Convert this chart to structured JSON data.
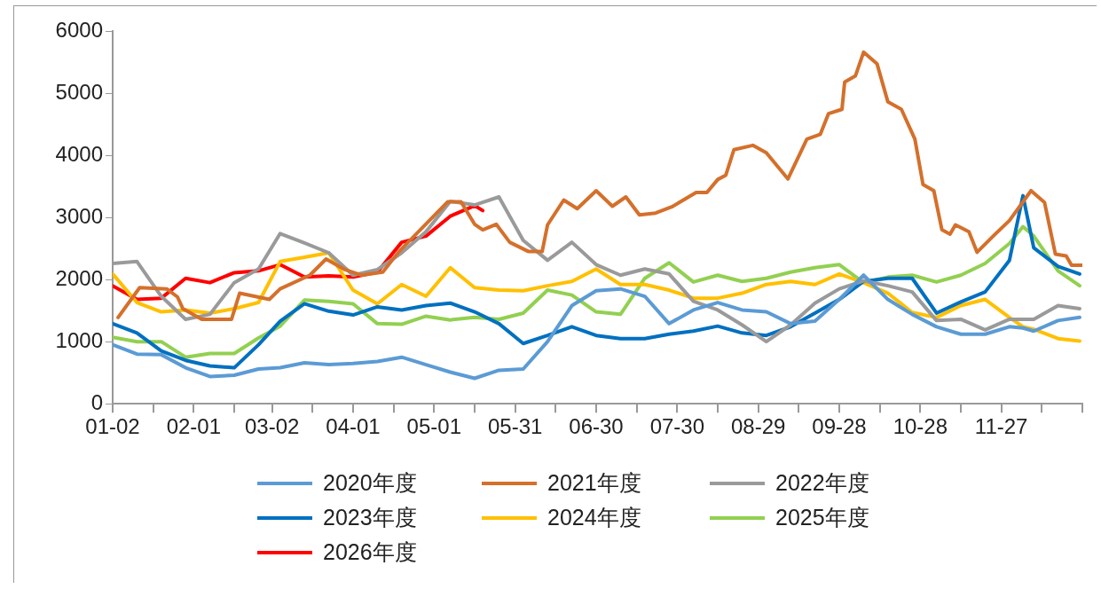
{
  "chart_data": {
    "type": "line",
    "legend": "bottom",
    "marker": "none",
    "line_style": "solid",
    "x": [
      "--01-02",
      "--01-11",
      "--01-20",
      "--01-29",
      "--02-07",
      "--02-16",
      "--02-25",
      "--03-05",
      "--03-14",
      "--03-23",
      "--04-01",
      "--04-10",
      "--04-19",
      "--04-28",
      "--05-07",
      "--05-16",
      "--05-25",
      "--06-03",
      "--06-12",
      "--06-21",
      "--06-30",
      "--07-09",
      "--07-18",
      "--07-27",
      "--08-05",
      "--08-14",
      "--08-23",
      "--09-01",
      "--09-10",
      "--09-19",
      "--09-28",
      "--10-07",
      "--10-16",
      "--10-25",
      "--11-03",
      "--11-12",
      "--11-21",
      "--11-30",
      "--12-05",
      "--12-09",
      "--12-18",
      "--12-26"
    ],
    "xlim": [
      "--01-02",
      "--12-27"
    ],
    "xticks": [
      {
        "value": "--01-02",
        "label": "01-02"
      },
      {
        "value": "--01-17",
        "label": null
      },
      {
        "value": "--02-01",
        "label": "02-01"
      },
      {
        "value": "--02-16",
        "label": null
      },
      {
        "value": "--03-02",
        "label": "03-02"
      },
      {
        "value": "--03-17",
        "label": null
      },
      {
        "value": "--04-01",
        "label": "04-01"
      },
      {
        "value": "--04-16",
        "label": null
      },
      {
        "value": "--05-01",
        "label": "05-01"
      },
      {
        "value": "--05-16",
        "label": null
      },
      {
        "value": "--05-31",
        "label": "05-31"
      },
      {
        "value": "--06-15",
        "label": null
      },
      {
        "value": "--06-30",
        "label": "06-30"
      },
      {
        "value": "--07-15",
        "label": null
      },
      {
        "value": "--07-30",
        "label": "07-30"
      },
      {
        "value": "--08-14",
        "label": null
      },
      {
        "value": "--08-29",
        "label": "08-29"
      },
      {
        "value": "--09-13",
        "label": null
      },
      {
        "value": "--09-28",
        "label": "09-28"
      },
      {
        "value": "--10-13",
        "label": null
      },
      {
        "value": "--10-28",
        "label": "10-28"
      },
      {
        "value": "--11-12",
        "label": null
      },
      {
        "value": "--11-27",
        "label": "11-27"
      },
      {
        "value": "--12-12",
        "label": null
      },
      {
        "value": "--12-27",
        "label": null
      }
    ],
    "ylim": [
      0,
      6000
    ],
    "yticks": [
      0,
      1000,
      2000,
      3000,
      4000,
      5000,
      6000
    ],
    "series": [
      {
        "name": "2020年度",
        "color": "#5b9bd5",
        "values": [
          950,
          800,
          790,
          580,
          440,
          460,
          560,
          580,
          660,
          630,
          650,
          680,
          750,
          630,
          510,
          410,
          540,
          560,
          1000,
          1580,
          1820,
          1850,
          1730,
          1290,
          1510,
          1630,
          1510,
          1480,
          1290,
          1330,
          1680,
          2070,
          1680,
          1440,
          1240,
          1120,
          1120,
          1240,
          1220,
          1170,
          1340,
          1390
        ]
      },
      {
        "name": "2021年度",
        "color": "#d4702b",
        "x": [
          "--01-04",
          "--01-12",
          "--01-22",
          "--01-26",
          "--01-28",
          "--02-04",
          "--02-15",
          "--02-18",
          "--03-01",
          "--03-05",
          "--03-16",
          "--03-22",
          "--03-29",
          "--04-04",
          "--04-12",
          "--04-18",
          "--04-27",
          "--05-06",
          "--05-11",
          "--05-16",
          "--05-19",
          "--05-24",
          "--05-29",
          "--06-05",
          "--06-10",
          "--06-12",
          "--06-18",
          "--06-23",
          "--06-30",
          "--07-06",
          "--07-11",
          "--07-16",
          "--07-22",
          "--07-28",
          "--08-06",
          "--08-10",
          "--08-14",
          "--08-17",
          "--08-20",
          "--08-27",
          "--09-01",
          "--09-09",
          "--09-16",
          "--09-21",
          "--09-24",
          "--09-29",
          "--09-30",
          "--10-04",
          "--10-07",
          "--10-12",
          "--10-16",
          "--10-21",
          "--10-26",
          "--10-29",
          "--11-02",
          "--11-05",
          "--11-08",
          "--11-10",
          "--11-15",
          "--11-18",
          "--11-24",
          "--11-30",
          "--12-08",
          "--12-13",
          "--12-17",
          "--12-21",
          "--12-23",
          "--12-27"
        ],
        "values": [
          1390,
          1870,
          1850,
          1720,
          1530,
          1360,
          1360,
          1780,
          1680,
          1850,
          2070,
          2330,
          2160,
          2070,
          2120,
          2450,
          2850,
          3250,
          3250,
          2890,
          2800,
          2890,
          2600,
          2450,
          2450,
          2880,
          3280,
          3140,
          3430,
          3180,
          3330,
          3040,
          3070,
          3170,
          3400,
          3400,
          3610,
          3680,
          4090,
          4160,
          4040,
          3620,
          4260,
          4340,
          4670,
          4740,
          5180,
          5280,
          5660,
          5470,
          4860,
          4740,
          4260,
          3530,
          3430,
          2800,
          2730,
          2880,
          2770,
          2440,
          2700,
          2950,
          3430,
          3240,
          2410,
          2380,
          2230,
          2230
        ]
      },
      {
        "name": "2022年度",
        "color": "#9a9a9a",
        "values": [
          2260,
          2290,
          1730,
          1360,
          1440,
          1950,
          2170,
          2740,
          2590,
          2430,
          2070,
          2160,
          2430,
          2770,
          3260,
          3200,
          3330,
          2630,
          2310,
          2600,
          2240,
          2070,
          2170,
          2090,
          1650,
          1510,
          1270,
          1000,
          1270,
          1620,
          1850,
          1980,
          1900,
          1800,
          1340,
          1360,
          1190,
          1360,
          1360,
          1360,
          1580,
          1530
        ]
      },
      {
        "name": "2023年度",
        "color": "#0070c0",
        "values": [
          1290,
          1140,
          850,
          700,
          610,
          580,
          950,
          1330,
          1610,
          1490,
          1430,
          1560,
          1510,
          1580,
          1620,
          1480,
          1290,
          970,
          1100,
          1240,
          1100,
          1050,
          1050,
          1120,
          1170,
          1250,
          1140,
          1100,
          1240,
          1460,
          1680,
          1970,
          2020,
          2020,
          1460,
          1640,
          1800,
          2310,
          3350,
          2510,
          2210,
          2090
        ]
      },
      {
        "name": "2024年度",
        "color": "#ffc000",
        "values": [
          2090,
          1630,
          1480,
          1510,
          1460,
          1530,
          1630,
          2290,
          2360,
          2430,
          1830,
          1610,
          1920,
          1730,
          2190,
          1870,
          1830,
          1820,
          1900,
          1970,
          2170,
          1920,
          1920,
          1830,
          1700,
          1700,
          1780,
          1920,
          1970,
          1920,
          2090,
          1950,
          1780,
          1470,
          1390,
          1580,
          1680,
          1390,
          1240,
          1200,
          1050,
          1010
        ]
      },
      {
        "name": "2025年度",
        "color": "#92d050",
        "values": [
          1070,
          1000,
          1000,
          750,
          810,
          810,
          1060,
          1250,
          1670,
          1650,
          1610,
          1290,
          1280,
          1410,
          1350,
          1390,
          1360,
          1460,
          1830,
          1750,
          1480,
          1440,
          2020,
          2270,
          1960,
          2070,
          1970,
          2020,
          2120,
          2190,
          2240,
          1950,
          2040,
          2070,
          1960,
          2070,
          2260,
          2580,
          2850,
          2700,
          2140,
          1900
        ]
      },
      {
        "name": "2026年度",
        "color": "#ff0000",
        "x": [
          "--01-02",
          "--01-11",
          "--01-20",
          "--01-29",
          "--02-07",
          "--02-16",
          "--02-25",
          "--03-05",
          "--03-14",
          "--03-23",
          "--04-01",
          "--04-10",
          "--04-19",
          "--04-28",
          "--05-07",
          "--05-16",
          "--05-19"
        ],
        "values": [
          1900,
          1680,
          1700,
          2020,
          1950,
          2110,
          2140,
          2240,
          2040,
          2060,
          2040,
          2120,
          2600,
          2700,
          3020,
          3190,
          3110
        ]
      }
    ]
  }
}
